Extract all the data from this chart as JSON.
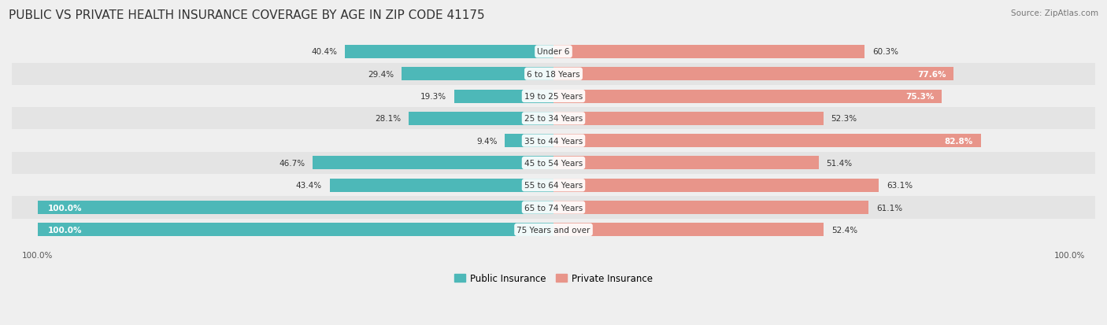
{
  "title": "PUBLIC VS PRIVATE HEALTH INSURANCE COVERAGE BY AGE IN ZIP CODE 41175",
  "source": "Source: ZipAtlas.com",
  "categories": [
    "Under 6",
    "6 to 18 Years",
    "19 to 25 Years",
    "25 to 34 Years",
    "35 to 44 Years",
    "45 to 54 Years",
    "55 to 64 Years",
    "65 to 74 Years",
    "75 Years and over"
  ],
  "public_values": [
    40.4,
    29.4,
    19.3,
    28.1,
    9.4,
    46.7,
    43.4,
    100.0,
    100.0
  ],
  "private_values": [
    60.3,
    77.6,
    75.3,
    52.3,
    82.8,
    51.4,
    63.1,
    61.1,
    52.4
  ],
  "public_color": "#4db8b8",
  "private_color": "#e8958a",
  "title_fontsize": 11,
  "label_fontsize": 7.5,
  "legend_labels": [
    "Public Insurance",
    "Private Insurance"
  ],
  "row_colors": [
    "#efefef",
    "#e4e4e4"
  ]
}
